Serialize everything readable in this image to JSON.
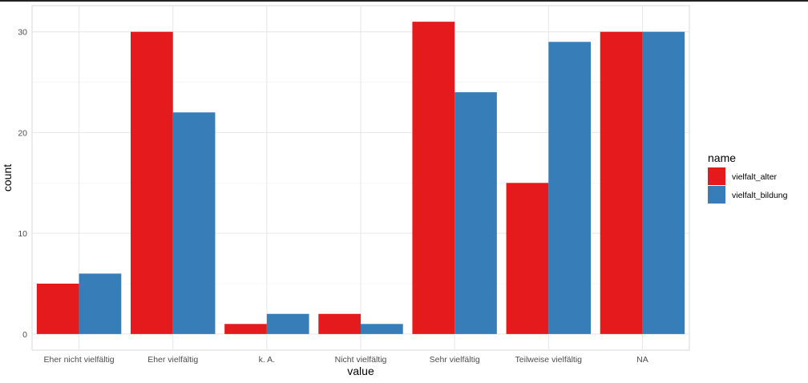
{
  "chart_data": {
    "type": "bar",
    "categories": [
      "Eher nicht vielfältig",
      "Eher vielfältig",
      "k. A.",
      "Nicht vielfältig",
      "Sehr vielfältig",
      "Teilweise vielfältig",
      "NA"
    ],
    "series": [
      {
        "name": "vielfalt_alter",
        "color": "#e41a1c",
        "values": [
          5,
          30,
          1,
          2,
          31,
          15,
          30
        ]
      },
      {
        "name": "vielfalt_bildung",
        "color": "#377eb8",
        "values": [
          6,
          22,
          2,
          1,
          24,
          29,
          30
        ]
      }
    ],
    "xlabel": "value",
    "ylabel": "count",
    "ylim": [
      -1.6,
      32.6
    ],
    "yticks": [
      0,
      10,
      20,
      30
    ],
    "grid": true,
    "legend": {
      "title": "name",
      "position": "right"
    }
  }
}
